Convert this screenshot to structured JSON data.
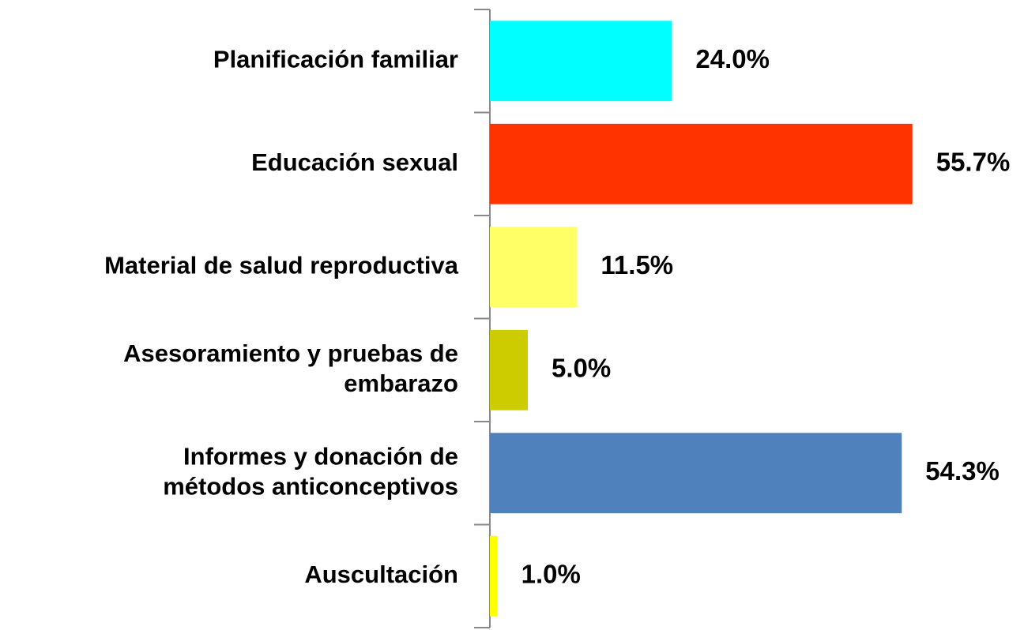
{
  "chart_data": {
    "type": "hbar",
    "categories": [
      "Planificación familiar",
      "Educación sexual",
      "Material de salud reproductiva",
      "Asesoramiento y pruebas de\nembarazo",
      "Informes y donación de\nmétodos anticonceptivos",
      "Auscultación"
    ],
    "values": [
      24.0,
      55.7,
      11.5,
      5.0,
      54.3,
      1.0
    ],
    "value_labels": [
      "24.0%",
      "55.7%",
      "11.5%",
      "5.0%",
      "54.3%",
      "1.0%"
    ],
    "colors": [
      "#00FFFF",
      "#FF3300",
      "#FFFF66",
      "#CCCC00",
      "#4F81BD",
      "#FFFF00"
    ]
  }
}
